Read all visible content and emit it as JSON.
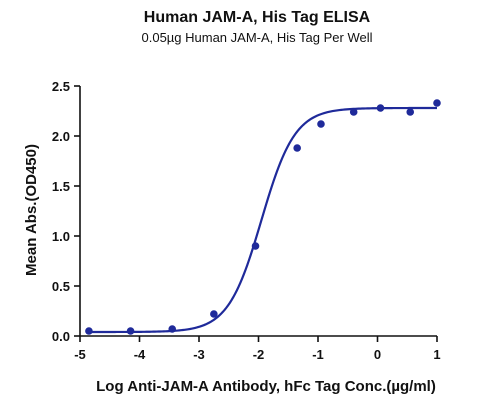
{
  "chart_data": {
    "type": "scatter",
    "title": "Human JAM-A, His Tag ELISA",
    "subtitle": "0.05µg Human JAM-A, His Tag Per Well",
    "xlabel": "Log Anti-JAM-A Antibody, hFc Tag Conc.(µg/ml)",
    "ylabel": "Mean Abs.(OD450)",
    "xlim": [
      -5,
      1
    ],
    "ylim": [
      0,
      2.5
    ],
    "xticks": [
      -5,
      -4,
      -3,
      -2,
      -1,
      0,
      1
    ],
    "yticks": [
      0.0,
      0.5,
      1.0,
      1.5,
      2.0,
      2.5
    ],
    "xtick_labels": [
      "-5",
      "-4",
      "-3",
      "-2",
      "-1",
      "0",
      "1"
    ],
    "ytick_labels": [
      "0.0",
      "0.5",
      "1.0",
      "1.5",
      "2.0",
      "2.5"
    ],
    "grid": false,
    "legend": false,
    "color": "#1f2a9a",
    "series": [
      {
        "x": [
          -4.85,
          -4.15,
          -3.45,
          -2.75,
          -2.05,
          -1.35,
          -0.95,
          -0.4,
          0.05,
          0.55,
          1.0
        ],
        "y": [
          0.05,
          0.05,
          0.07,
          0.22,
          0.9,
          1.88,
          2.12,
          2.24,
          2.28,
          2.24,
          2.33
        ],
        "fit": "four-parameter logistic",
        "fit_params": {
          "bottom": 0.04,
          "top": 2.28,
          "logEC50": -1.95,
          "hill": 1.55
        }
      }
    ]
  }
}
